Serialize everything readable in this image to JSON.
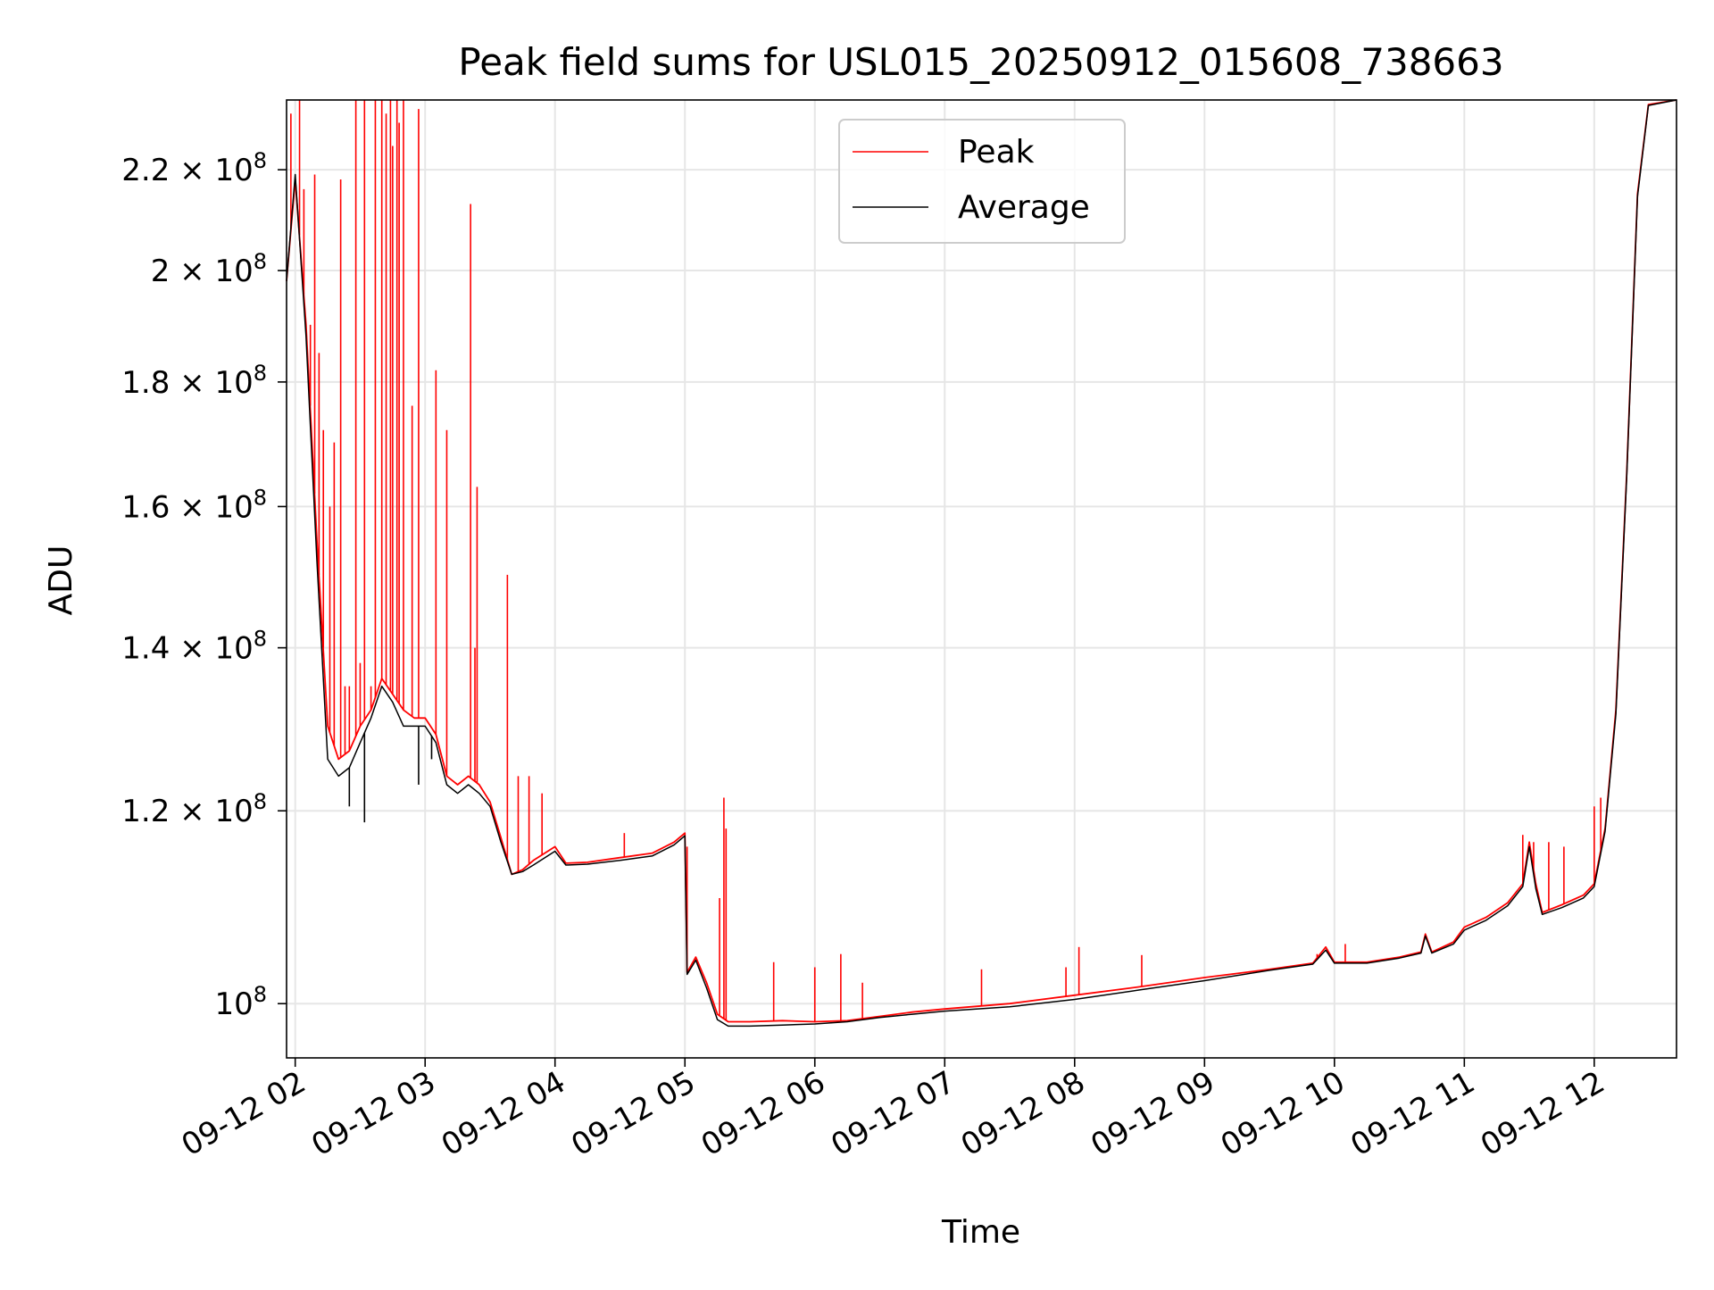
{
  "chart_data": {
    "type": "line",
    "title": "Peak field sums for USL015_20250912_015608_738663",
    "xlabel": "Time",
    "ylabel": "ADU",
    "y_scale": "log",
    "grid": true,
    "legend_position": "top-center",
    "x_range": [
      "09-12 01:56",
      "09-12 12:38"
    ],
    "ylim": [
      95000000,
      235000000
    ],
    "x_ticks": [
      {
        "t": "09-12 02:00",
        "label": "09-12 02"
      },
      {
        "t": "09-12 03:00",
        "label": "09-12 03"
      },
      {
        "t": "09-12 04:00",
        "label": "09-12 04"
      },
      {
        "t": "09-12 05:00",
        "label": "09-12 05"
      },
      {
        "t": "09-12 06:00",
        "label": "09-12 06"
      },
      {
        "t": "09-12 07:00",
        "label": "09-12 07"
      },
      {
        "t": "09-12 08:00",
        "label": "09-12 08"
      },
      {
        "t": "09-12 09:00",
        "label": "09-12 09"
      },
      {
        "t": "09-12 10:00",
        "label": "09-12 10"
      },
      {
        "t": "09-12 11:00",
        "label": "09-12 11"
      },
      {
        "t": "09-12 12:00",
        "label": "09-12 12"
      }
    ],
    "y_ticks": [
      {
        "value": 100000000,
        "mant": "",
        "exp": "8"
      },
      {
        "value": 120000000,
        "mant": "1.2",
        "exp": "8"
      },
      {
        "value": 140000000,
        "mant": "1.4",
        "exp": "8"
      },
      {
        "value": 160000000,
        "mant": "1.6",
        "exp": "8"
      },
      {
        "value": 180000000,
        "mant": "1.8",
        "exp": "8"
      },
      {
        "value": 200000000,
        "mant": "2",
        "exp": "8"
      },
      {
        "value": 220000000,
        "mant": "2.2",
        "exp": "8"
      }
    ],
    "y_tick_times": "×",
    "y_tick_base": "10",
    "series": [
      {
        "name": "Peak",
        "color": "#ff0000",
        "points": [
          [
            "09-12 01:56",
            198000000
          ],
          [
            "09-12 02:00",
            218000000
          ],
          [
            "09-12 02:05",
            190000000
          ],
          [
            "09-12 02:10",
            155000000
          ],
          [
            "09-12 02:15",
            130000000
          ],
          [
            "09-12 02:20",
            126000000
          ],
          [
            "09-12 02:25",
            127000000
          ],
          [
            "09-12 02:30",
            130000000
          ],
          [
            "09-12 02:35",
            132000000
          ],
          [
            "09-12 02:40",
            136000000
          ],
          [
            "09-12 02:45",
            134000000
          ],
          [
            "09-12 02:50",
            132000000
          ],
          [
            "09-12 02:55",
            131000000
          ],
          [
            "09-12 03:00",
            131000000
          ],
          [
            "09-12 03:05",
            129000000
          ],
          [
            "09-12 03:10",
            124000000
          ],
          [
            "09-12 03:15",
            123000000
          ],
          [
            "09-12 03:20",
            124000000
          ],
          [
            "09-12 03:25",
            123000000
          ],
          [
            "09-12 03:30",
            121000000
          ],
          [
            "09-12 03:35",
            117000000
          ],
          [
            "09-12 03:40",
            113000000
          ],
          [
            "09-12 03:45",
            113500000
          ],
          [
            "09-12 03:50",
            114500000
          ],
          [
            "09-12 04:00",
            116000000
          ],
          [
            "09-12 04:05",
            114200000
          ],
          [
            "09-12 04:15",
            114300000
          ],
          [
            "09-12 04:30",
            114800000
          ],
          [
            "09-12 04:45",
            115300000
          ],
          [
            "09-12 04:55",
            116500000
          ],
          [
            "09-12 05:00",
            117500000
          ],
          [
            "09-12 05:01",
            103000000
          ],
          [
            "09-12 05:05",
            104500000
          ],
          [
            "09-12 05:10",
            102000000
          ],
          [
            "09-12 05:15",
            99000000
          ],
          [
            "09-12 05:20",
            98300000
          ],
          [
            "09-12 05:30",
            98300000
          ],
          [
            "09-12 05:45",
            98400000
          ],
          [
            "09-12 06:00",
            98300000
          ],
          [
            "09-12 06:15",
            98400000
          ],
          [
            "09-12 06:30",
            98800000
          ],
          [
            "09-12 06:45",
            99200000
          ],
          [
            "09-12 07:00",
            99500000
          ],
          [
            "09-12 07:30",
            100000000
          ],
          [
            "09-12 08:00",
            100800000
          ],
          [
            "09-12 08:30",
            101600000
          ],
          [
            "09-12 09:00",
            102500000
          ],
          [
            "09-12 09:30",
            103300000
          ],
          [
            "09-12 09:50",
            103900000
          ],
          [
            "09-12 09:56",
            105500000
          ],
          [
            "09-12 10:00",
            104000000
          ],
          [
            "09-12 10:15",
            104000000
          ],
          [
            "09-12 10:30",
            104500000
          ],
          [
            "09-12 10:40",
            105000000
          ],
          [
            "09-12 10:42",
            106800000
          ],
          [
            "09-12 10:45",
            105000000
          ],
          [
            "09-12 10:55",
            106000000
          ],
          [
            "09-12 11:00",
            107500000
          ],
          [
            "09-12 11:10",
            108500000
          ],
          [
            "09-12 11:20",
            110000000
          ],
          [
            "09-12 11:27",
            112000000
          ],
          [
            "09-12 11:30",
            116500000
          ],
          [
            "09-12 11:33",
            112000000
          ],
          [
            "09-12 11:36",
            109000000
          ],
          [
            "09-12 11:45",
            109800000
          ],
          [
            "09-12 11:55",
            110800000
          ],
          [
            "09-12 12:00",
            112000000
          ],
          [
            "09-12 12:05",
            118000000
          ],
          [
            "09-12 12:10",
            132000000
          ],
          [
            "09-12 12:15",
            165000000
          ],
          [
            "09-12 12:20",
            215000000
          ],
          [
            "09-12 12:25",
            234000000
          ],
          [
            "09-12 12:38",
            235000000
          ]
        ],
        "spikes": [
          [
            "09-12 01:58",
            232000000
          ],
          [
            "09-12 02:02",
            235000000
          ],
          [
            "09-12 02:04",
            216000000
          ],
          [
            "09-12 02:07",
            190000000
          ],
          [
            "09-12 02:09",
            219000000
          ],
          [
            "09-12 02:11",
            185000000
          ],
          [
            "09-12 02:13",
            172000000
          ],
          [
            "09-12 02:16",
            160000000
          ],
          [
            "09-12 02:18",
            170000000
          ],
          [
            "09-12 02:21",
            218000000
          ],
          [
            "09-12 02:23",
            135000000
          ],
          [
            "09-12 02:25",
            135000000
          ],
          [
            "09-12 02:28",
            235000000
          ],
          [
            "09-12 02:30",
            138000000
          ],
          [
            "09-12 02:32",
            235000000
          ],
          [
            "09-12 02:35",
            135000000
          ],
          [
            "09-12 02:37",
            235000000
          ],
          [
            "09-12 02:40",
            235000000
          ],
          [
            "09-12 02:42",
            232000000
          ],
          [
            "09-12 02:44",
            235000000
          ],
          [
            "09-12 02:45",
            225000000
          ],
          [
            "09-12 02:47",
            235000000
          ],
          [
            "09-12 02:48",
            230000000
          ],
          [
            "09-12 02:50",
            235000000
          ],
          [
            "09-12 02:54",
            176000000
          ],
          [
            "09-12 02:57",
            233000000
          ],
          [
            "09-12 03:05",
            182000000
          ],
          [
            "09-12 03:10",
            172000000
          ],
          [
            "09-12 03:21",
            213000000
          ],
          [
            "09-12 03:23",
            140000000
          ],
          [
            "09-12 03:24",
            163000000
          ],
          [
            "09-12 03:38",
            150000000
          ],
          [
            "09-12 03:43",
            124000000
          ],
          [
            "09-12 03:48",
            124000000
          ],
          [
            "09-12 03:54",
            122000000
          ],
          [
            "09-12 04:32",
            117500000
          ],
          [
            "09-12 05:01",
            116000000
          ],
          [
            "09-12 05:16",
            110500000
          ],
          [
            "09-12 05:18",
            121500000
          ],
          [
            "09-12 05:19",
            118000000
          ],
          [
            "09-12 05:41",
            104000000
          ],
          [
            "09-12 06:00",
            103500000
          ],
          [
            "09-12 06:12",
            104800000
          ],
          [
            "09-12 06:22",
            102000000
          ],
          [
            "09-12 07:17",
            103300000
          ],
          [
            "09-12 07:56",
            103500000
          ],
          [
            "09-12 08:02",
            105500000
          ],
          [
            "09-12 08:31",
            104700000
          ],
          [
            "09-12 09:52",
            104800000
          ],
          [
            "09-12 10:05",
            105800000
          ],
          [
            "09-12 11:27",
            117300000
          ],
          [
            "09-12 11:32",
            116500000
          ],
          [
            "09-12 11:39",
            116500000
          ],
          [
            "09-12 11:46",
            116000000
          ],
          [
            "09-12 12:00",
            120500000
          ],
          [
            "09-12 12:03",
            121500000
          ]
        ]
      },
      {
        "name": "Average",
        "color": "#000000",
        "points": [
          [
            "09-12 01:56",
            198000000
          ],
          [
            "09-12 02:00",
            219000000
          ],
          [
            "09-12 02:05",
            188000000
          ],
          [
            "09-12 02:10",
            152000000
          ],
          [
            "09-12 02:15",
            126000000
          ],
          [
            "09-12 02:20",
            124000000
          ],
          [
            "09-12 02:25",
            125000000
          ],
          [
            "09-12 02:30",
            128000000
          ],
          [
            "09-12 02:35",
            131000000
          ],
          [
            "09-12 02:40",
            135000000
          ],
          [
            "09-12 02:45",
            133000000
          ],
          [
            "09-12 02:50",
            130000000
          ],
          [
            "09-12 02:55",
            130000000
          ],
          [
            "09-12 03:00",
            130000000
          ],
          [
            "09-12 03:05",
            128000000
          ],
          [
            "09-12 03:10",
            123000000
          ],
          [
            "09-12 03:15",
            122000000
          ],
          [
            "09-12 03:20",
            123000000
          ],
          [
            "09-12 03:25",
            122000000
          ],
          [
            "09-12 03:30",
            120500000
          ],
          [
            "09-12 03:35",
            116500000
          ],
          [
            "09-12 03:40",
            113000000
          ],
          [
            "09-12 03:45",
            113300000
          ],
          [
            "09-12 03:50",
            114000000
          ],
          [
            "09-12 04:00",
            115500000
          ],
          [
            "09-12 04:05",
            114000000
          ],
          [
            "09-12 04:15",
            114100000
          ],
          [
            "09-12 04:30",
            114500000
          ],
          [
            "09-12 04:45",
            115000000
          ],
          [
            "09-12 04:55",
            116200000
          ],
          [
            "09-12 05:00",
            117200000
          ],
          [
            "09-12 05:01",
            102800000
          ],
          [
            "09-12 05:05",
            104200000
          ],
          [
            "09-12 05:10",
            101500000
          ],
          [
            "09-12 05:15",
            98500000
          ],
          [
            "09-12 05:20",
            97900000
          ],
          [
            "09-12 05:30",
            97900000
          ],
          [
            "09-12 05:45",
            98000000
          ],
          [
            "09-12 06:00",
            98100000
          ],
          [
            "09-12 06:15",
            98300000
          ],
          [
            "09-12 06:30",
            98700000
          ],
          [
            "09-12 06:45",
            99000000
          ],
          [
            "09-12 07:00",
            99300000
          ],
          [
            "09-12 07:30",
            99700000
          ],
          [
            "09-12 08:00",
            100400000
          ],
          [
            "09-12 08:30",
            101300000
          ],
          [
            "09-12 09:00",
            102200000
          ],
          [
            "09-12 09:30",
            103200000
          ],
          [
            "09-12 09:50",
            103800000
          ],
          [
            "09-12 09:56",
            105200000
          ],
          [
            "09-12 10:00",
            103900000
          ],
          [
            "09-12 10:15",
            103900000
          ],
          [
            "09-12 10:30",
            104400000
          ],
          [
            "09-12 10:40",
            104900000
          ],
          [
            "09-12 10:42",
            106600000
          ],
          [
            "09-12 10:45",
            104900000
          ],
          [
            "09-12 10:55",
            105800000
          ],
          [
            "09-12 11:00",
            107200000
          ],
          [
            "09-12 11:10",
            108200000
          ],
          [
            "09-12 11:20",
            109700000
          ],
          [
            "09-12 11:27",
            111700000
          ],
          [
            "09-12 11:30",
            116000000
          ],
          [
            "09-12 11:33",
            111500000
          ],
          [
            "09-12 11:36",
            108800000
          ],
          [
            "09-12 11:45",
            109500000
          ],
          [
            "09-12 11:55",
            110500000
          ],
          [
            "09-12 12:00",
            111700000
          ],
          [
            "09-12 12:05",
            117700000
          ],
          [
            "09-12 12:10",
            131500000
          ],
          [
            "09-12 12:15",
            164500000
          ],
          [
            "09-12 12:20",
            214500000
          ],
          [
            "09-12 12:25",
            233800000
          ],
          [
            "09-12 12:38",
            235000000
          ]
        ],
        "spikes": [
          [
            "09-12 02:25",
            120500000
          ],
          [
            "09-12 02:32",
            118700000
          ],
          [
            "09-12 02:57",
            123000000
          ],
          [
            "09-12 03:03",
            126000000
          ]
        ]
      }
    ]
  }
}
